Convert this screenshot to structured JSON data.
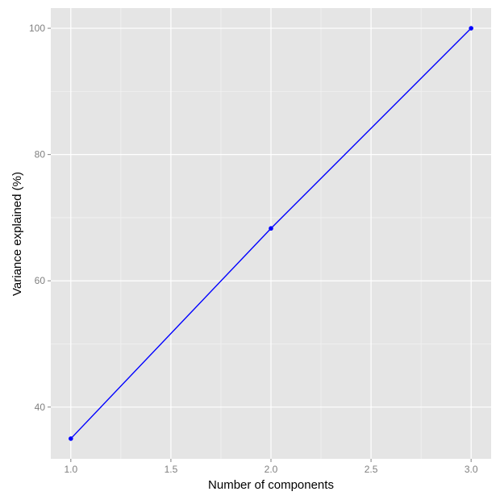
{
  "chart_data": {
    "type": "line",
    "title": "",
    "xlabel": "Number of components",
    "ylabel": "Variance explained (%)",
    "xlim": [
      0.9,
      3.1
    ],
    "ylim": [
      31.8,
      103.2
    ],
    "x_ticks": [
      1.0,
      1.5,
      2.0,
      2.5,
      3.0
    ],
    "x_tick_labels": [
      "1.0",
      "1.5",
      "2.0",
      "2.5",
      "3.0"
    ],
    "y_ticks": [
      40,
      60,
      80,
      100
    ],
    "y_tick_labels": [
      "40",
      "60",
      "80",
      "100"
    ],
    "grid": true,
    "legend": "none",
    "series": [
      {
        "x": [
          1,
          2,
          3
        ],
        "values": [
          35,
          68.3,
          100
        ],
        "color": "#0000ff",
        "markers": true
      }
    ]
  },
  "colors": {
    "panel_background": "#e5e5e5",
    "grid_major": "#ffffff",
    "grid_minor": "#f2f2f2",
    "tick_text": "#7f7f7f",
    "axis_title": "#000000"
  }
}
